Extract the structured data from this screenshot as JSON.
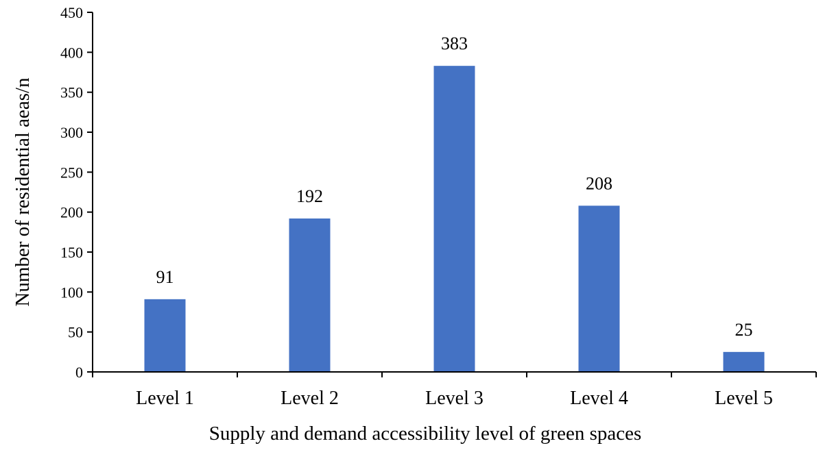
{
  "chart_data": {
    "type": "bar",
    "categories": [
      "Level 1",
      "Level 2",
      "Level 3",
      "Level 4",
      "Level 5"
    ],
    "values": [
      91,
      192,
      383,
      208,
      25
    ],
    "data_labels": [
      "91",
      "192",
      "383",
      "208",
      "25"
    ],
    "xlabel": "Supply and demand accessibility level of green spaces",
    "ylabel": "Number of residential aeas/n",
    "ylim": [
      0,
      450
    ],
    "yticks": [
      0,
      50,
      100,
      150,
      200,
      250,
      300,
      350,
      400,
      450
    ],
    "grid": false,
    "legend": "none",
    "bar_color": "#4472C4"
  }
}
